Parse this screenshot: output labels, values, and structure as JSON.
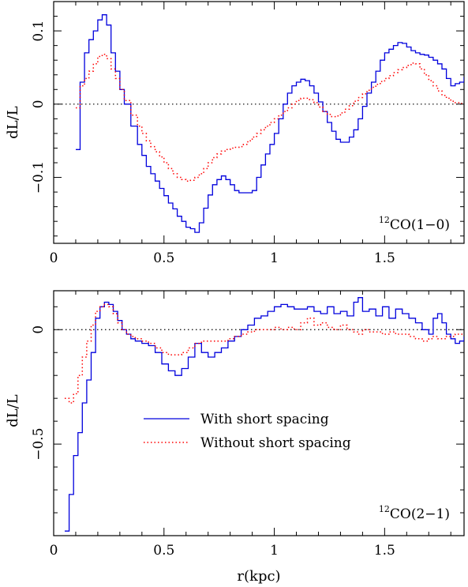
{
  "chart_data": [
    {
      "type": "line",
      "step": true,
      "annotation": {
        "prefix": "12",
        "text": "CO(1−0)"
      },
      "xlabel": "",
      "ylabel": "dL/L",
      "xlim": [
        0,
        1.86
      ],
      "ylim": [
        -0.19,
        0.14
      ],
      "xticks": [
        0,
        0.5,
        1,
        1.5
      ],
      "xtick_labels": [
        "0",
        "0.5",
        "1",
        "1.5"
      ],
      "yticks": [
        -0.1,
        0,
        0.1
      ],
      "ytick_labels": [
        "−0.1",
        "0",
        "0.1"
      ],
      "zero_line": true,
      "series": [
        {
          "name": "With short spacing",
          "color": "#0000dd",
          "style": "solid",
          "x": [
            0.1,
            0.12,
            0.14,
            0.16,
            0.18,
            0.2,
            0.22,
            0.24,
            0.26,
            0.28,
            0.3,
            0.32,
            0.35,
            0.38,
            0.4,
            0.42,
            0.44,
            0.46,
            0.48,
            0.5,
            0.52,
            0.54,
            0.56,
            0.58,
            0.6,
            0.62,
            0.64,
            0.66,
            0.68,
            0.7,
            0.72,
            0.74,
            0.76,
            0.78,
            0.8,
            0.82,
            0.84,
            0.86,
            0.88,
            0.9,
            0.92,
            0.94,
            0.96,
            0.98,
            1.0,
            1.02,
            1.04,
            1.06,
            1.08,
            1.1,
            1.12,
            1.14,
            1.16,
            1.18,
            1.2,
            1.22,
            1.24,
            1.26,
            1.28,
            1.3,
            1.32,
            1.34,
            1.36,
            1.38,
            1.4,
            1.42,
            1.44,
            1.46,
            1.48,
            1.5,
            1.52,
            1.54,
            1.56,
            1.58,
            1.6,
            1.62,
            1.64,
            1.66,
            1.68,
            1.7,
            1.72,
            1.74,
            1.76,
            1.78,
            1.8,
            1.82,
            1.84,
            1.86
          ],
          "y": [
            -0.062,
            0.03,
            0.07,
            0.088,
            0.1,
            0.115,
            0.122,
            0.108,
            0.07,
            0.045,
            0.02,
            0.0,
            -0.03,
            -0.055,
            -0.07,
            -0.085,
            -0.095,
            -0.105,
            -0.115,
            -0.125,
            -0.135,
            -0.143,
            -0.153,
            -0.16,
            -0.168,
            -0.17,
            -0.175,
            -0.162,
            -0.142,
            -0.124,
            -0.11,
            -0.103,
            -0.098,
            -0.103,
            -0.11,
            -0.118,
            -0.121,
            -0.121,
            -0.121,
            -0.118,
            -0.1,
            -0.083,
            -0.068,
            -0.055,
            -0.04,
            -0.02,
            0.0,
            0.015,
            0.025,
            0.03,
            0.034,
            0.032,
            0.025,
            0.015,
            0.003,
            -0.01,
            -0.025,
            -0.037,
            -0.048,
            -0.052,
            -0.052,
            -0.045,
            -0.035,
            -0.02,
            -0.003,
            0.015,
            0.03,
            0.045,
            0.06,
            0.07,
            0.075,
            0.08,
            0.084,
            0.083,
            0.078,
            0.073,
            0.07,
            0.068,
            0.067,
            0.064,
            0.06,
            0.055,
            0.048,
            0.035,
            0.025,
            0.028,
            0.03,
            0.037
          ]
        },
        {
          "name": "Without short spacing",
          "color": "#ff0000",
          "style": "dotted",
          "x": [
            0.1,
            0.12,
            0.14,
            0.16,
            0.18,
            0.2,
            0.22,
            0.24,
            0.26,
            0.28,
            0.3,
            0.32,
            0.35,
            0.38,
            0.4,
            0.42,
            0.44,
            0.46,
            0.48,
            0.5,
            0.52,
            0.54,
            0.56,
            0.58,
            0.6,
            0.62,
            0.64,
            0.66,
            0.68,
            0.7,
            0.72,
            0.74,
            0.76,
            0.78,
            0.8,
            0.82,
            0.84,
            0.86,
            0.88,
            0.9,
            0.92,
            0.94,
            0.96,
            0.98,
            1.0,
            1.02,
            1.04,
            1.06,
            1.08,
            1.1,
            1.12,
            1.14,
            1.16,
            1.18,
            1.2,
            1.22,
            1.24,
            1.26,
            1.28,
            1.3,
            1.32,
            1.34,
            1.36,
            1.38,
            1.4,
            1.42,
            1.44,
            1.46,
            1.48,
            1.5,
            1.52,
            1.54,
            1.56,
            1.58,
            1.6,
            1.62,
            1.64,
            1.66,
            1.68,
            1.7,
            1.72,
            1.74,
            1.76,
            1.78,
            1.8,
            1.82,
            1.84,
            1.86
          ],
          "y": [
            -0.005,
            0.025,
            0.035,
            0.045,
            0.055,
            0.065,
            0.068,
            0.062,
            0.048,
            0.035,
            0.02,
            0.005,
            -0.015,
            -0.03,
            -0.04,
            -0.05,
            -0.058,
            -0.065,
            -0.072,
            -0.08,
            -0.088,
            -0.095,
            -0.1,
            -0.103,
            -0.105,
            -0.104,
            -0.1,
            -0.095,
            -0.088,
            -0.08,
            -0.073,
            -0.068,
            -0.064,
            -0.062,
            -0.06,
            -0.059,
            -0.058,
            -0.055,
            -0.05,
            -0.045,
            -0.04,
            -0.035,
            -0.03,
            -0.025,
            -0.02,
            -0.015,
            -0.01,
            -0.005,
            0.0,
            0.005,
            0.008,
            0.008,
            0.006,
            0.002,
            -0.004,
            -0.01,
            -0.014,
            -0.017,
            -0.016,
            -0.012,
            -0.007,
            -0.002,
            0.004,
            0.009,
            0.014,
            0.019,
            0.023,
            0.027,
            0.031,
            0.035,
            0.039,
            0.043,
            0.047,
            0.05,
            0.053,
            0.056,
            0.055,
            0.048,
            0.04,
            0.032,
            0.025,
            0.018,
            0.012,
            0.008,
            0.004,
            0.002,
            0.001,
            0.001
          ]
        }
      ]
    },
    {
      "type": "line",
      "step": true,
      "annotation": {
        "prefix": "12",
        "text": "CO(2−1)"
      },
      "xlabel": "r(kpc)",
      "ylabel": "dL/L",
      "xlim": [
        0,
        1.86
      ],
      "ylim": [
        -0.9,
        0.17
      ],
      "xticks": [
        0,
        0.5,
        1,
        1.5
      ],
      "xtick_labels": [
        "0",
        "0.5",
        "1",
        "1.5"
      ],
      "yticks": [
        -0.5,
        0
      ],
      "ytick_labels": [
        "−0.5",
        "0"
      ],
      "zero_line": true,
      "legend": {
        "placement": "center-left"
      },
      "series": [
        {
          "name": "With short spacing",
          "color": "#0000dd",
          "style": "solid",
          "x": [
            0.05,
            0.07,
            0.09,
            0.11,
            0.13,
            0.15,
            0.17,
            0.19,
            0.21,
            0.23,
            0.25,
            0.27,
            0.29,
            0.31,
            0.33,
            0.35,
            0.37,
            0.4,
            0.43,
            0.46,
            0.49,
            0.52,
            0.55,
            0.58,
            0.61,
            0.64,
            0.67,
            0.7,
            0.73,
            0.76,
            0.79,
            0.82,
            0.85,
            0.88,
            0.91,
            0.94,
            0.97,
            1.0,
            1.03,
            1.06,
            1.09,
            1.12,
            1.15,
            1.18,
            1.21,
            1.24,
            1.27,
            1.3,
            1.33,
            1.36,
            1.38,
            1.4,
            1.43,
            1.46,
            1.49,
            1.52,
            1.55,
            1.58,
            1.61,
            1.64,
            1.67,
            1.7,
            1.72,
            1.74,
            1.76,
            1.78,
            1.8,
            1.82,
            1.84,
            1.86
          ],
          "y": [
            -0.88,
            -0.72,
            -0.55,
            -0.45,
            -0.32,
            -0.22,
            -0.1,
            0.05,
            0.1,
            0.12,
            0.11,
            0.08,
            0.04,
            0.0,
            -0.02,
            -0.04,
            -0.05,
            -0.06,
            -0.07,
            -0.1,
            -0.15,
            -0.18,
            -0.2,
            -0.17,
            -0.12,
            -0.06,
            -0.1,
            -0.12,
            -0.1,
            -0.08,
            -0.05,
            -0.03,
            0.0,
            0.02,
            0.05,
            0.06,
            0.08,
            0.1,
            0.11,
            0.1,
            0.09,
            0.09,
            0.1,
            0.08,
            0.07,
            0.1,
            0.07,
            0.08,
            0.06,
            0.12,
            0.14,
            0.08,
            0.09,
            0.06,
            0.1,
            0.05,
            0.09,
            0.07,
            0.05,
            0.03,
            0.0,
            -0.02,
            0.05,
            0.07,
            0.03,
            -0.02,
            -0.04,
            -0.06,
            -0.05,
            -0.03
          ]
        },
        {
          "name": "Without short spacing",
          "color": "#ff0000",
          "style": "dotted",
          "x": [
            0.05,
            0.07,
            0.09,
            0.11,
            0.13,
            0.15,
            0.17,
            0.19,
            0.21,
            0.23,
            0.25,
            0.27,
            0.29,
            0.31,
            0.33,
            0.35,
            0.37,
            0.4,
            0.43,
            0.46,
            0.49,
            0.52,
            0.55,
            0.58,
            0.61,
            0.64,
            0.67,
            0.7,
            0.73,
            0.76,
            0.79,
            0.82,
            0.85,
            0.88,
            0.91,
            0.94,
            0.97,
            1.0,
            1.03,
            1.06,
            1.09,
            1.12,
            1.15,
            1.18,
            1.21,
            1.24,
            1.27,
            1.3,
            1.33,
            1.36,
            1.38,
            1.4,
            1.43,
            1.46,
            1.49,
            1.52,
            1.55,
            1.58,
            1.61,
            1.64,
            1.67,
            1.7,
            1.72,
            1.74,
            1.76,
            1.78,
            1.8,
            1.82,
            1.84,
            1.86
          ],
          "y": [
            -0.3,
            -0.32,
            -0.28,
            -0.2,
            -0.12,
            -0.05,
            0.02,
            0.08,
            0.1,
            0.11,
            0.1,
            0.07,
            0.03,
            0.0,
            -0.02,
            -0.03,
            -0.04,
            -0.05,
            -0.06,
            -0.08,
            -0.1,
            -0.11,
            -0.11,
            -0.1,
            -0.08,
            -0.06,
            -0.05,
            -0.05,
            -0.05,
            -0.05,
            -0.04,
            -0.03,
            -0.02,
            -0.01,
            0.0,
            0.0,
            0.0,
            0.01,
            0.0,
            0.01,
            0.0,
            0.03,
            0.05,
            0.02,
            0.03,
            0.01,
            0.0,
            0.02,
            0.0,
            -0.01,
            -0.02,
            0.0,
            -0.01,
            -0.01,
            -0.02,
            -0.01,
            -0.02,
            -0.02,
            -0.03,
            -0.04,
            -0.05,
            -0.04,
            -0.03,
            -0.04,
            -0.04,
            -0.03,
            -0.03,
            -0.02,
            -0.02,
            -0.02
          ]
        }
      ]
    }
  ]
}
